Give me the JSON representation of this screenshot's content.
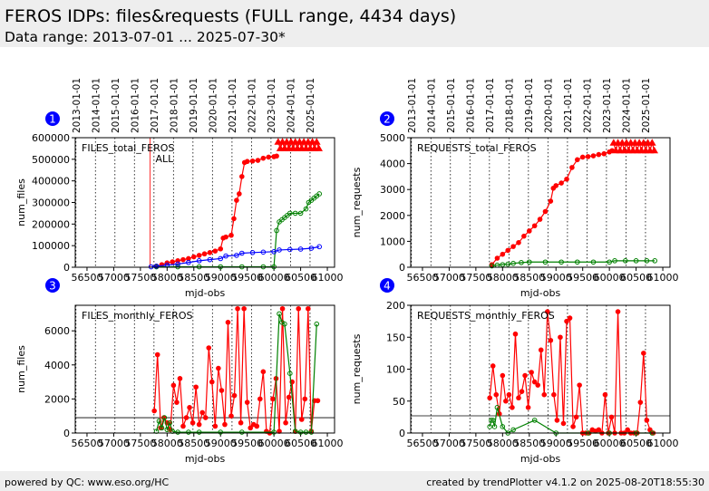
{
  "header": {
    "title": "FEROS IDPs: files&requests (FULL range, 4434 days)",
    "subtitle": "Data range: 2013-07-01 ... 2025-07-30*"
  },
  "footer": {
    "left": "powered by QC: www.eso.org/HC",
    "right": "created by trendPlotter v4.1.2 on 2025-08-20T18:55:30"
  },
  "chart_data": [
    {
      "type": "line",
      "panel_label": "1",
      "label": "FILES_total_FEROS",
      "xlabel": "mjd-obs",
      "ylabel": "num_files",
      "xlim": [
        56280,
        61135
      ],
      "xticks": [
        56500,
        57000,
        57500,
        58000,
        58500,
        59000,
        59500,
        60000,
        60500,
        61000
      ],
      "x2ticks": [
        {
          "value": 56293,
          "label": "2013-01-01"
        },
        {
          "value": 56658,
          "label": "2014-01-01"
        },
        {
          "value": 57023,
          "label": "2015-01-01"
        },
        {
          "value": 57388,
          "label": "2016-01-01"
        },
        {
          "value": 57754,
          "label": "2017-01-01"
        },
        {
          "value": 58119,
          "label": "2018-01-01"
        },
        {
          "value": 58484,
          "label": "2019-01-01"
        },
        {
          "value": 58849,
          "label": "2020-01-01"
        },
        {
          "value": 59215,
          "label": "2021-01-01"
        },
        {
          "value": 59580,
          "label": "2022-01-01"
        },
        {
          "value": 59945,
          "label": "2023-01-01"
        },
        {
          "value": 60310,
          "label": "2024-01-01"
        },
        {
          "value": 60676,
          "label": "2025-01-01"
        }
      ],
      "ylim": [
        0,
        600000
      ],
      "yticks": [
        0,
        100000,
        200000,
        300000,
        400000,
        500000,
        600000
      ],
      "vline": {
        "value": 57680,
        "label": "ALL",
        "color": "#ff0000"
      },
      "series": [
        {
          "color": "#ff0000",
          "filled": true,
          "marker": "circle",
          "x": [
            57800,
            57900,
            58000,
            58100,
            58200,
            58300,
            58400,
            58500,
            58600,
            58700,
            58800,
            58900,
            59000,
            59050,
            59100,
            59200,
            59250,
            59300,
            59350,
            59400,
            59450,
            59500,
            59600,
            59700,
            59800,
            59900,
            60000,
            60050
          ],
          "values": [
            5000,
            12000,
            20000,
            25000,
            30000,
            35000,
            40000,
            48000,
            55000,
            62000,
            68000,
            75000,
            85000,
            135000,
            140000,
            148000,
            225000,
            310000,
            340000,
            420000,
            485000,
            490000,
            492000,
            495000,
            505000,
            510000,
            512000,
            515000
          ]
        },
        {
          "color": "#ff0000",
          "filled": true,
          "marker": "triangle",
          "x": [
            60080,
            60120,
            60160,
            60200,
            60240,
            60280,
            60320,
            60360,
            60400,
            60440,
            60480,
            60520,
            60560,
            60600,
            60640,
            60680,
            60720,
            60760,
            60800,
            60840
          ],
          "values": [
            580000,
            550000,
            580000,
            550000,
            580000,
            550000,
            580000,
            550000,
            580000,
            550000,
            580000,
            550000,
            580000,
            550000,
            580000,
            550000,
            580000,
            550000,
            580000,
            550000
          ]
        },
        {
          "color": "#008000",
          "filled": false,
          "marker": "circle",
          "x": [
            57800,
            58200,
            58600,
            59000,
            59400,
            59800,
            60000,
            60050,
            60100,
            60150,
            60200,
            60250,
            60300,
            60400,
            60500,
            60600,
            60650,
            60700,
            60750,
            60800,
            60850
          ],
          "values": [
            2000,
            2000,
            2000,
            2000,
            2000,
            2000,
            2000,
            170000,
            210000,
            220000,
            230000,
            240000,
            250000,
            250000,
            250000,
            270000,
            300000,
            310000,
            320000,
            330000,
            340000
          ]
        },
        {
          "color": "#0000ff",
          "filled": false,
          "marker": "circle",
          "x": [
            57700,
            57800,
            58000,
            58200,
            58400,
            58600,
            58800,
            59000,
            59100,
            59300,
            59400,
            59600,
            59800,
            60000,
            60100,
            60300,
            60500,
            60700,
            60850
          ],
          "values": [
            2000,
            5000,
            10000,
            15000,
            22000,
            30000,
            35000,
            40000,
            52000,
            55000,
            65000,
            68000,
            70000,
            72000,
            80000,
            82000,
            84000,
            88000,
            95000
          ]
        }
      ]
    },
    {
      "type": "line",
      "panel_label": "2",
      "label": "REQUESTS_total_FEROS",
      "xlabel": "mjd-obs",
      "ylabel": "num_requests",
      "xlim": [
        56280,
        61135
      ],
      "xticks": [
        56500,
        57000,
        57500,
        58000,
        58500,
        59000,
        59500,
        60000,
        60500,
        61000
      ],
      "x2ticks": [
        {
          "value": 56293,
          "label": "2013-01-01"
        },
        {
          "value": 56658,
          "label": "2014-01-01"
        },
        {
          "value": 57023,
          "label": "2015-01-01"
        },
        {
          "value": 57388,
          "label": "2016-01-01"
        },
        {
          "value": 57754,
          "label": "2017-01-01"
        },
        {
          "value": 58119,
          "label": "2018-01-01"
        },
        {
          "value": 58484,
          "label": "2019-01-01"
        },
        {
          "value": 58849,
          "label": "2020-01-01"
        },
        {
          "value": 59215,
          "label": "2021-01-01"
        },
        {
          "value": 59580,
          "label": "2022-01-01"
        },
        {
          "value": 59945,
          "label": "2023-01-01"
        },
        {
          "value": 60310,
          "label": "2024-01-01"
        },
        {
          "value": 60676,
          "label": "2025-01-01"
        }
      ],
      "ylim": [
        0,
        5000
      ],
      "yticks": [
        0,
        1000,
        2000,
        3000,
        4000,
        5000
      ],
      "series": [
        {
          "color": "#ff0000",
          "filled": true,
          "marker": "circle",
          "x": [
            57800,
            57900,
            58000,
            58100,
            58200,
            58300,
            58400,
            58500,
            58600,
            58700,
            58800,
            58900,
            58950,
            59000,
            59100,
            59200,
            59300,
            59400,
            59500,
            59600,
            59700,
            59800,
            59900,
            60000,
            60050
          ],
          "values": [
            100,
            350,
            500,
            650,
            800,
            950,
            1200,
            1400,
            1600,
            1850,
            2150,
            2550,
            3050,
            3150,
            3250,
            3400,
            3850,
            4150,
            4250,
            4270,
            4300,
            4350,
            4380,
            4450,
            4500
          ]
        },
        {
          "color": "#ff0000",
          "filled": true,
          "marker": "triangle",
          "x": [
            60080,
            60120,
            60160,
            60200,
            60240,
            60280,
            60320,
            60360,
            60400,
            60440,
            60480,
            60520,
            60560,
            60600,
            60640,
            60680,
            60720,
            60760,
            60800,
            60840
          ],
          "values": [
            4800,
            4500,
            4800,
            4500,
            4800,
            4500,
            4800,
            4500,
            4800,
            4500,
            4800,
            4500,
            4800,
            4500,
            4800,
            4500,
            4800,
            4500,
            4800,
            4500
          ]
        },
        {
          "color": "#008000",
          "filled": false,
          "marker": "circle",
          "x": [
            57800,
            57900,
            58000,
            58100,
            58200,
            58350,
            58500,
            58800,
            59100,
            59400,
            59700,
            60000,
            60100,
            60300,
            60500,
            60700,
            60850
          ],
          "values": [
            50,
            80,
            100,
            120,
            150,
            180,
            200,
            200,
            200,
            200,
            200,
            200,
            250,
            250,
            250,
            250,
            250
          ]
        }
      ]
    },
    {
      "type": "line",
      "panel_label": "3",
      "label": "FILES_monthly_FEROS",
      "xlabel": "mjd-obs",
      "ylabel": "num_files",
      "xlim": [
        56280,
        61135
      ],
      "xticks": [
        56500,
        57000,
        57500,
        58000,
        58500,
        59000,
        59500,
        60000,
        60500,
        61000
      ],
      "vlines": [
        56293,
        56658,
        57023,
        57388,
        57754,
        58119,
        58484,
        58849,
        59215,
        59580,
        59945,
        60310,
        60676
      ],
      "ylim": [
        0,
        7500
      ],
      "yticks": [
        0,
        2000,
        4000,
        6000
      ],
      "ref_line": 900,
      "series": [
        {
          "color": "#ff0000",
          "filled": true,
          "marker": "circle",
          "x": [
            57760,
            57820,
            57880,
            57940,
            58000,
            58060,
            58120,
            58180,
            58240,
            58300,
            58360,
            58420,
            58480,
            58540,
            58600,
            58660,
            58720,
            58780,
            58840,
            58900,
            58960,
            59020,
            59080,
            59140,
            59200,
            59260,
            59320,
            59380,
            59440,
            59500,
            59560,
            59620,
            59680,
            59740,
            59800,
            59860,
            59920,
            59980,
            60040,
            60100,
            60160,
            60220,
            60280,
            60340,
            60400,
            60460,
            60520,
            60580,
            60640,
            60700,
            60760,
            60820
          ],
          "values": [
            1300,
            4600,
            300,
            900,
            600,
            200,
            2800,
            1800,
            3200,
            400,
            900,
            1500,
            600,
            2700,
            500,
            1200,
            900,
            5000,
            3000,
            400,
            3800,
            2500,
            500,
            6500,
            1000,
            2200,
            7300,
            600,
            7300,
            1800,
            300,
            500,
            400,
            2000,
            3600,
            100,
            0,
            2000,
            3200,
            100,
            7300,
            600,
            2100,
            3000,
            100,
            7300,
            800,
            2000,
            7300,
            100,
            1900,
            1900
          ]
        },
        {
          "color": "#008000",
          "filled": false,
          "marker": "circle",
          "x": [
            57800,
            57850,
            57900,
            57950,
            58000,
            58050,
            58100,
            58200,
            58400,
            58600,
            59000,
            59400,
            60000,
            60100,
            60150,
            60200,
            60300,
            60400,
            60500,
            60600,
            60700,
            60800
          ],
          "values": [
            100,
            700,
            300,
            900,
            200,
            600,
            100,
            50,
            50,
            50,
            50,
            50,
            50,
            7000,
            6500,
            6400,
            3500,
            100,
            50,
            50,
            50,
            6400
          ]
        }
      ]
    },
    {
      "type": "line",
      "panel_label": "4",
      "label": "REQUESTS_monthly_FEROS",
      "xlabel": "mjd-obs",
      "ylabel": "num_requests",
      "xlim": [
        56280,
        61135
      ],
      "xticks": [
        56500,
        57000,
        57500,
        58000,
        58500,
        59000,
        59500,
        60000,
        60500,
        61000
      ],
      "vlines": [
        56293,
        56658,
        57023,
        57388,
        57754,
        58119,
        58484,
        58849,
        59215,
        59580,
        59945,
        60310,
        60676
      ],
      "ylim": [
        0,
        200
      ],
      "yticks": [
        0,
        50,
        100,
        150,
        200
      ],
      "ref_line": 27,
      "series": [
        {
          "color": "#ff0000",
          "filled": true,
          "marker": "circle",
          "x": [
            57760,
            57820,
            57880,
            57940,
            58000,
            58060,
            58120,
            58180,
            58240,
            58300,
            58360,
            58420,
            58480,
            58540,
            58600,
            58660,
            58720,
            58780,
            58840,
            58900,
            58960,
            59020,
            59080,
            59140,
            59200,
            59260,
            59320,
            59380,
            59440,
            59500,
            59560,
            59620,
            59680,
            59740,
            59800,
            59860,
            59920,
            59980,
            60040,
            60100,
            60160,
            60220,
            60280,
            60340,
            60400,
            60460,
            60520,
            60580,
            60640,
            60700,
            60760,
            60820
          ],
          "values": [
            55,
            105,
            60,
            30,
            90,
            50,
            60,
            40,
            155,
            55,
            65,
            90,
            40,
            95,
            80,
            75,
            130,
            60,
            190,
            145,
            60,
            20,
            150,
            15,
            175,
            180,
            10,
            25,
            75,
            0,
            0,
            0,
            5,
            3,
            5,
            0,
            60,
            0,
            25,
            0,
            190,
            0,
            0,
            5,
            0,
            0,
            0,
            48,
            125,
            20,
            5,
            0
          ]
        },
        {
          "color": "#008000",
          "filled": false,
          "marker": "circle",
          "x": [
            57760,
            57790,
            57820,
            57850,
            57900,
            58000,
            58100,
            58200,
            58600,
            59000,
            59600,
            60000,
            60500,
            60800
          ],
          "values": [
            10,
            20,
            20,
            10,
            40,
            10,
            0,
            5,
            20,
            0,
            0,
            0,
            0,
            0
          ]
        }
      ]
    }
  ]
}
